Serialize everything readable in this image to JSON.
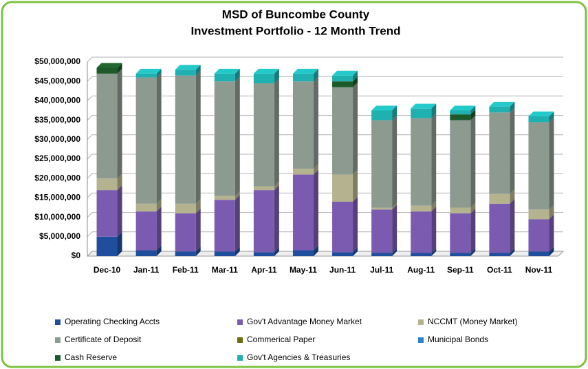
{
  "chart_data": {
    "type": "stacked_bar_3d",
    "title": "MSD of Buncombe County",
    "subtitle": "Investment Portfolio - 12 Month Trend",
    "categories": [
      "Dec-10",
      "Jan-11",
      "Feb-11",
      "Mar-11",
      "Apr-11",
      "May-11",
      "Jun-11",
      "Jul-11",
      "Aug-11",
      "Sep-11",
      "Oct-11",
      "Nov-11"
    ],
    "series": [
      {
        "name": "Operating Checking Accts",
        "color": "#1f4e9c",
        "values": [
          5000000,
          1500000,
          1200000,
          1200000,
          1000000,
          1500000,
          1000000,
          800000,
          800000,
          800000,
          800000,
          1200000
        ]
      },
      {
        "name": "Gov't Advantage Money Market",
        "color": "#7a5bb0",
        "values": [
          12000000,
          10000000,
          9800000,
          13300000,
          16000000,
          19500000,
          13000000,
          11200000,
          10700000,
          10200000,
          12700000,
          8300000
        ]
      },
      {
        "name": "NCCMT (Money Market)",
        "color": "#b5b38f",
        "values": [
          3000000,
          2000000,
          2500000,
          1000000,
          1000000,
          1500000,
          7000000,
          500000,
          1500000,
          1500000,
          2500000,
          2500000
        ]
      },
      {
        "name": "Certificate of Deposit",
        "color": "#8c9a90",
        "values": [
          27000000,
          32500000,
          33000000,
          29500000,
          26500000,
          22500000,
          22500000,
          22500000,
          22500000,
          22500000,
          21000000,
          22500000
        ]
      },
      {
        "name": "Commerical Paper",
        "color": "#6b6b10",
        "values": [
          0,
          0,
          0,
          0,
          0,
          0,
          0,
          0,
          0,
          0,
          0,
          0
        ]
      },
      {
        "name": "Municipal Bonds",
        "color": "#2a86c8",
        "values": [
          0,
          0,
          0,
          0,
          0,
          0,
          0,
          0,
          0,
          0,
          0,
          0
        ]
      },
      {
        "name": "Cash  Reserve",
        "color": "#1d5a2a",
        "values": [
          1500000,
          0,
          0,
          0,
          0,
          0,
          1500000,
          0,
          0,
          1500000,
          0,
          0
        ]
      },
      {
        "name": "Gov't Agencies & Treasuries",
        "color": "#1fb0b0",
        "values": [
          0,
          1000000,
          1500000,
          2000000,
          2500000,
          2000000,
          1500000,
          2500000,
          2500000,
          1000000,
          1500000,
          1500000
        ]
      }
    ],
    "ylim": [
      0,
      50000000
    ],
    "yticks": [
      {
        "value": 0,
        "label": "$0"
      },
      {
        "value": 5000000,
        "label": "$5,000,000"
      },
      {
        "value": 10000000,
        "label": "$10,000,000"
      },
      {
        "value": 15000000,
        "label": "$15,000,000"
      },
      {
        "value": 20000000,
        "label": "$20,000,000"
      },
      {
        "value": 25000000,
        "label": "$25,000,000"
      },
      {
        "value": 30000000,
        "label": "$30,000,000"
      },
      {
        "value": 35000000,
        "label": "$35,000,000"
      },
      {
        "value": 40000000,
        "label": "$40,000,000"
      },
      {
        "value": 45000000,
        "label": "$45,000,000"
      },
      {
        "value": 50000000,
        "label": "$50,000,000"
      }
    ],
    "grid": true,
    "legend": "bottom"
  }
}
